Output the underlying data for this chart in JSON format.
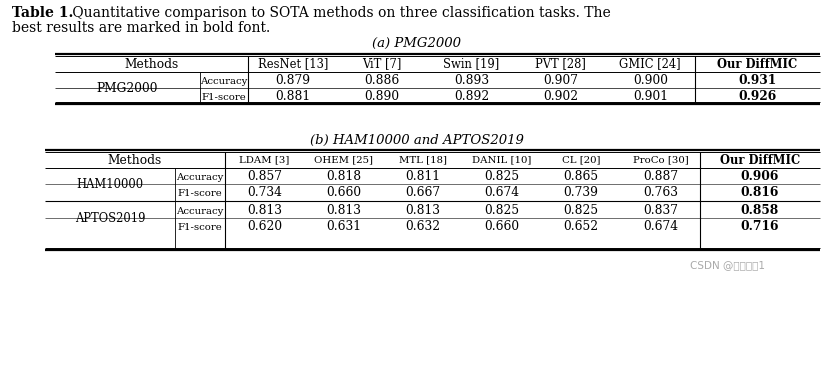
{
  "title_bold": "Table 1.",
  "title_rest": " Quantitative comparison to SOTA methods on three classification tasks. The",
  "title_line2": "best results are marked in bold font.",
  "subtitle_a": "(a) PMG2000",
  "subtitle_b": "(b) HAM10000 and APTOS2019",
  "watermark": "CSDN @小杨小扨1",
  "bg_color": "#ffffff",
  "font_size_title": 10.0,
  "font_size_subtitle": 9.5,
  "font_size_table_header": 8.8,
  "font_size_table_data": 8.8,
  "table_a": {
    "col_headers": [
      "Methods",
      "ResNet [13]",
      "ViT [7]",
      "Swin [19]",
      "PVT [28]",
      "GMIC [24]",
      "Our DiffMIC"
    ],
    "row_header": "PMG2000",
    "rows": [
      [
        "Accuracy",
        "0.879",
        "0.886",
        "0.893",
        "0.907",
        "0.900",
        "0.931"
      ],
      [
        "F1-score",
        "0.881",
        "0.890",
        "0.892",
        "0.902",
        "0.901",
        "0.926"
      ]
    ]
  },
  "table_b": {
    "col_headers": [
      "Methods",
      "LDAM [3]",
      "OHEM [25]",
      "MTL [18]",
      "DANIL [10]",
      "CL [20]",
      "ProCo [30]",
      "Our DiffMIC"
    ],
    "rows": [
      {
        "row_header": "HAM10000",
        "data": [
          [
            "Accuracy",
            "0.857",
            "0.818",
            "0.811",
            "0.825",
            "0.865",
            "0.887",
            "0.906"
          ],
          [
            "F1-score",
            "0.734",
            "0.660",
            "0.667",
            "0.674",
            "0.739",
            "0.763",
            "0.816"
          ]
        ]
      },
      {
        "row_header": "APTOS2019",
        "data": [
          [
            "Accuracy",
            "0.813",
            "0.813",
            "0.813",
            "0.825",
            "0.825",
            "0.837",
            "0.858"
          ],
          [
            "F1-score",
            "0.620",
            "0.631",
            "0.632",
            "0.660",
            "0.652",
            "0.674",
            "0.716"
          ]
        ]
      }
    ]
  }
}
